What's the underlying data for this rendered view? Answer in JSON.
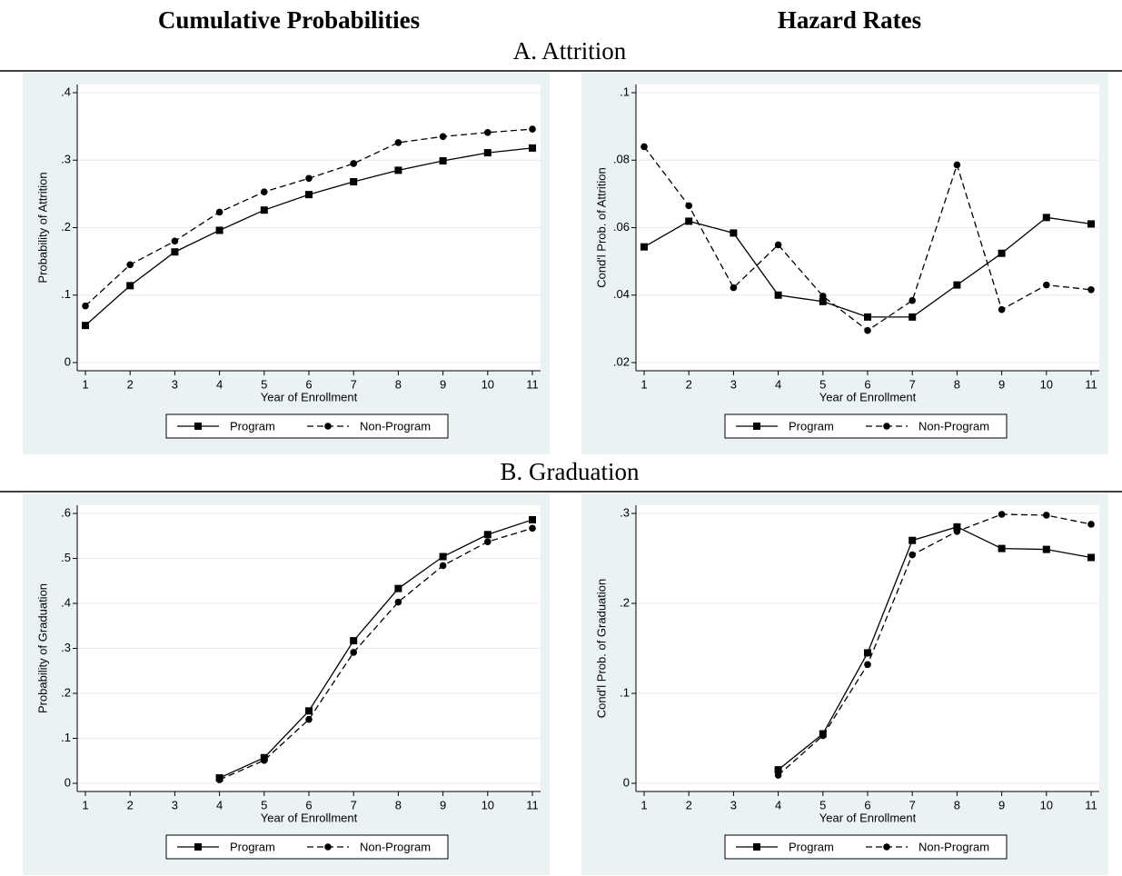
{
  "column_headers": [
    "Cumulative Probabilities",
    "Hazard Rates"
  ],
  "section_titles": [
    "A. Attrition",
    "B. Graduation"
  ],
  "chart_data": [
    {
      "type": "line",
      "xlabel": "Year of Enrollment",
      "ylabel": "Probability of Attrition",
      "x": [
        1,
        2,
        3,
        4,
        5,
        6,
        7,
        8,
        9,
        10,
        11
      ],
      "xlim": [
        1,
        11
      ],
      "xticks": [
        1,
        2,
        3,
        4,
        5,
        6,
        7,
        8,
        9,
        10,
        11
      ],
      "ylim": [
        0,
        0.4
      ],
      "yticks": [
        0,
        {
          "value": 0.1,
          "label": ".1"
        },
        {
          "value": 0.2,
          "label": ".2"
        },
        {
          "value": 0.3,
          "label": ".3"
        },
        {
          "value": 0.4,
          "label": ".4"
        }
      ],
      "grid": true,
      "legend": "bottom",
      "series": [
        {
          "name": "Program",
          "color": "#000000",
          "dash": "solid",
          "marker": "square",
          "values": [
            0.055,
            0.114,
            0.164,
            0.196,
            0.226,
            0.249,
            0.268,
            0.285,
            0.299,
            0.311,
            0.318
          ]
        },
        {
          "name": "Non-Program",
          "color": "#000000",
          "dash": "dashed",
          "marker": "circle",
          "values": [
            0.084,
            0.145,
            0.18,
            0.223,
            0.253,
            0.273,
            0.295,
            0.326,
            0.335,
            0.341,
            0.346
          ]
        }
      ]
    },
    {
      "type": "line",
      "xlabel": "Year of Enrollment",
      "ylabel": "Cond'l Prob. of Attrition",
      "x": [
        1,
        2,
        3,
        4,
        5,
        6,
        7,
        8,
        9,
        10,
        11
      ],
      "xlim": [
        1,
        11
      ],
      "xticks": [
        1,
        2,
        3,
        4,
        5,
        6,
        7,
        8,
        9,
        10,
        11
      ],
      "ylim": [
        0.02,
        0.1
      ],
      "yticks": [
        {
          "value": 0.02,
          "label": ".02"
        },
        {
          "value": 0.04,
          "label": ".04"
        },
        {
          "value": 0.06,
          "label": ".06"
        },
        {
          "value": 0.08,
          "label": ".08"
        },
        {
          "value": 0.1,
          "label": ".1"
        }
      ],
      "grid": true,
      "legend": "bottom",
      "series": [
        {
          "name": "Program",
          "color": "#000000",
          "dash": "solid",
          "marker": "square",
          "values": [
            0.0543,
            0.0619,
            0.0584,
            0.04,
            0.0381,
            0.0335,
            0.0335,
            0.043,
            0.0524,
            0.063,
            0.0611
          ]
        },
        {
          "name": "Non-Program",
          "color": "#000000",
          "dash": "dashed",
          "marker": "circle",
          "values": [
            0.084,
            0.0665,
            0.0422,
            0.0549,
            0.0397,
            0.0295,
            0.0384,
            0.0786,
            0.0357,
            0.043,
            0.0416
          ]
        }
      ]
    },
    {
      "type": "line",
      "xlabel": "Year of Enrollment",
      "ylabel": "Probability of Graduation",
      "x": [
        1,
        2,
        3,
        4,
        5,
        6,
        7,
        8,
        9,
        10,
        11
      ],
      "xlim": [
        1,
        11
      ],
      "xticks": [
        1,
        2,
        3,
        4,
        5,
        6,
        7,
        8,
        9,
        10,
        11
      ],
      "ylim": [
        0,
        0.6
      ],
      "yticks": [
        0,
        {
          "value": 0.1,
          "label": ".1"
        },
        {
          "value": 0.2,
          "label": ".2"
        },
        {
          "value": 0.3,
          "label": ".3"
        },
        {
          "value": 0.4,
          "label": ".4"
        },
        {
          "value": 0.5,
          "label": ".5"
        },
        {
          "value": 0.6,
          "label": ".6"
        }
      ],
      "grid": true,
      "legend": "bottom",
      "series": [
        {
          "name": "Program",
          "color": "#000000",
          "dash": "solid",
          "marker": "square",
          "values": [
            null,
            null,
            null,
            0.012,
            0.057,
            0.161,
            0.317,
            0.433,
            0.504,
            0.553,
            0.586
          ]
        },
        {
          "name": "Non-Program",
          "color": "#000000",
          "dash": "dashed",
          "marker": "circle",
          "values": [
            null,
            null,
            null,
            0.008,
            0.051,
            0.142,
            0.291,
            0.403,
            0.484,
            0.537,
            0.567
          ]
        }
      ]
    },
    {
      "type": "line",
      "xlabel": "Year of Enrollment",
      "ylabel": "Cond'l Prob. of Graduation",
      "x": [
        1,
        2,
        3,
        4,
        5,
        6,
        7,
        8,
        9,
        10,
        11
      ],
      "xlim": [
        1,
        11
      ],
      "xticks": [
        1,
        2,
        3,
        4,
        5,
        6,
        7,
        8,
        9,
        10,
        11
      ],
      "ylim": [
        0,
        0.3
      ],
      "yticks": [
        0,
        {
          "value": 0.1,
          "label": ".1"
        },
        {
          "value": 0.2,
          "label": ".2"
        },
        {
          "value": 0.3,
          "label": ".3"
        }
      ],
      "grid": true,
      "legend": "bottom",
      "series": [
        {
          "name": "Program",
          "color": "#000000",
          "dash": "solid",
          "marker": "square",
          "values": [
            null,
            null,
            null,
            0.015,
            0.055,
            0.145,
            0.27,
            0.285,
            0.261,
            0.26,
            0.251
          ]
        },
        {
          "name": "Non-Program",
          "color": "#000000",
          "dash": "dashed",
          "marker": "circle",
          "values": [
            null,
            null,
            null,
            0.009,
            0.053,
            0.132,
            0.254,
            0.28,
            0.299,
            0.298,
            0.288
          ]
        }
      ]
    }
  ]
}
